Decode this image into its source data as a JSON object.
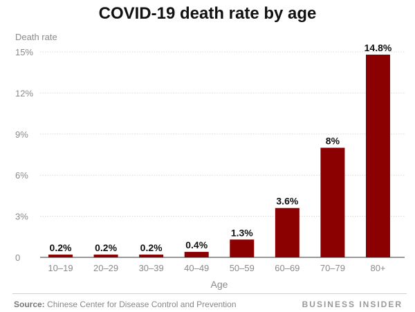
{
  "chart_data": {
    "type": "bar",
    "title": "COVID-19 death rate by age",
    "ylabel": "Death rate",
    "xlabel": "Age",
    "categories": [
      "10–19",
      "20–29",
      "30–39",
      "40–49",
      "50–59",
      "60–69",
      "70–79",
      "80+"
    ],
    "values": [
      0.2,
      0.2,
      0.2,
      0.4,
      1.3,
      3.6,
      8,
      14.8
    ],
    "data_labels": [
      "0.2%",
      "0.2%",
      "0.2%",
      "0.4%",
      "1.3%",
      "3.6%",
      "8%",
      "14.8%"
    ],
    "yticks": [
      0,
      3,
      6,
      9,
      12,
      15
    ],
    "ytick_labels": [
      "0",
      "3%",
      "6%",
      "9%",
      "12%",
      "15%"
    ],
    "ylim": [
      0,
      15
    ],
    "grid": true,
    "bar_color": "#8b0000"
  },
  "footer": {
    "source_label": "Source:",
    "source_text": "Chinese Center for Disease Control and Prevention",
    "brand": "BUSINESS INSIDER"
  }
}
